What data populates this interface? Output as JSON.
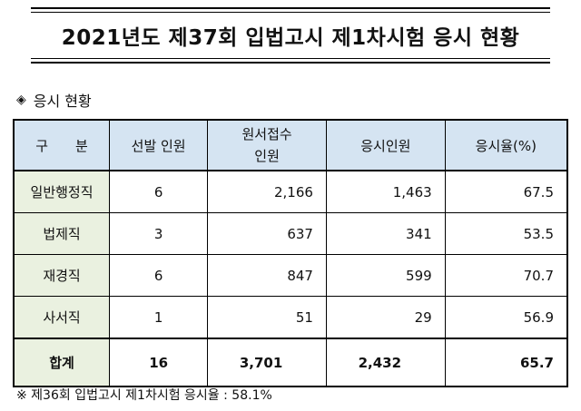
{
  "title": "2021년도 제37회 입법고시 제1차시험 응시 현황",
  "section_marker": "◈",
  "section_label": "응시 현황",
  "table": {
    "headers": [
      "구　　분",
      "선발 인원",
      "원서접수\n인원",
      "응시인원",
      "응시율(%)"
    ],
    "rows": [
      [
        "일반행정직",
        "6",
        "2,166",
        "1,463",
        "67.5"
      ],
      [
        "법제직",
        "3",
        "637",
        "341",
        "53.5"
      ],
      [
        "재경직",
        "6",
        "847",
        "599",
        "70.7"
      ],
      [
        "사서직",
        "1",
        "51",
        "29",
        "56.9"
      ]
    ],
    "total": [
      "합계",
      "16",
      "3,701",
      "2,432",
      "65.7"
    ]
  },
  "footnote": "※ 제36회 입법고시 제1차시험 응시율 : 58.1%"
}
